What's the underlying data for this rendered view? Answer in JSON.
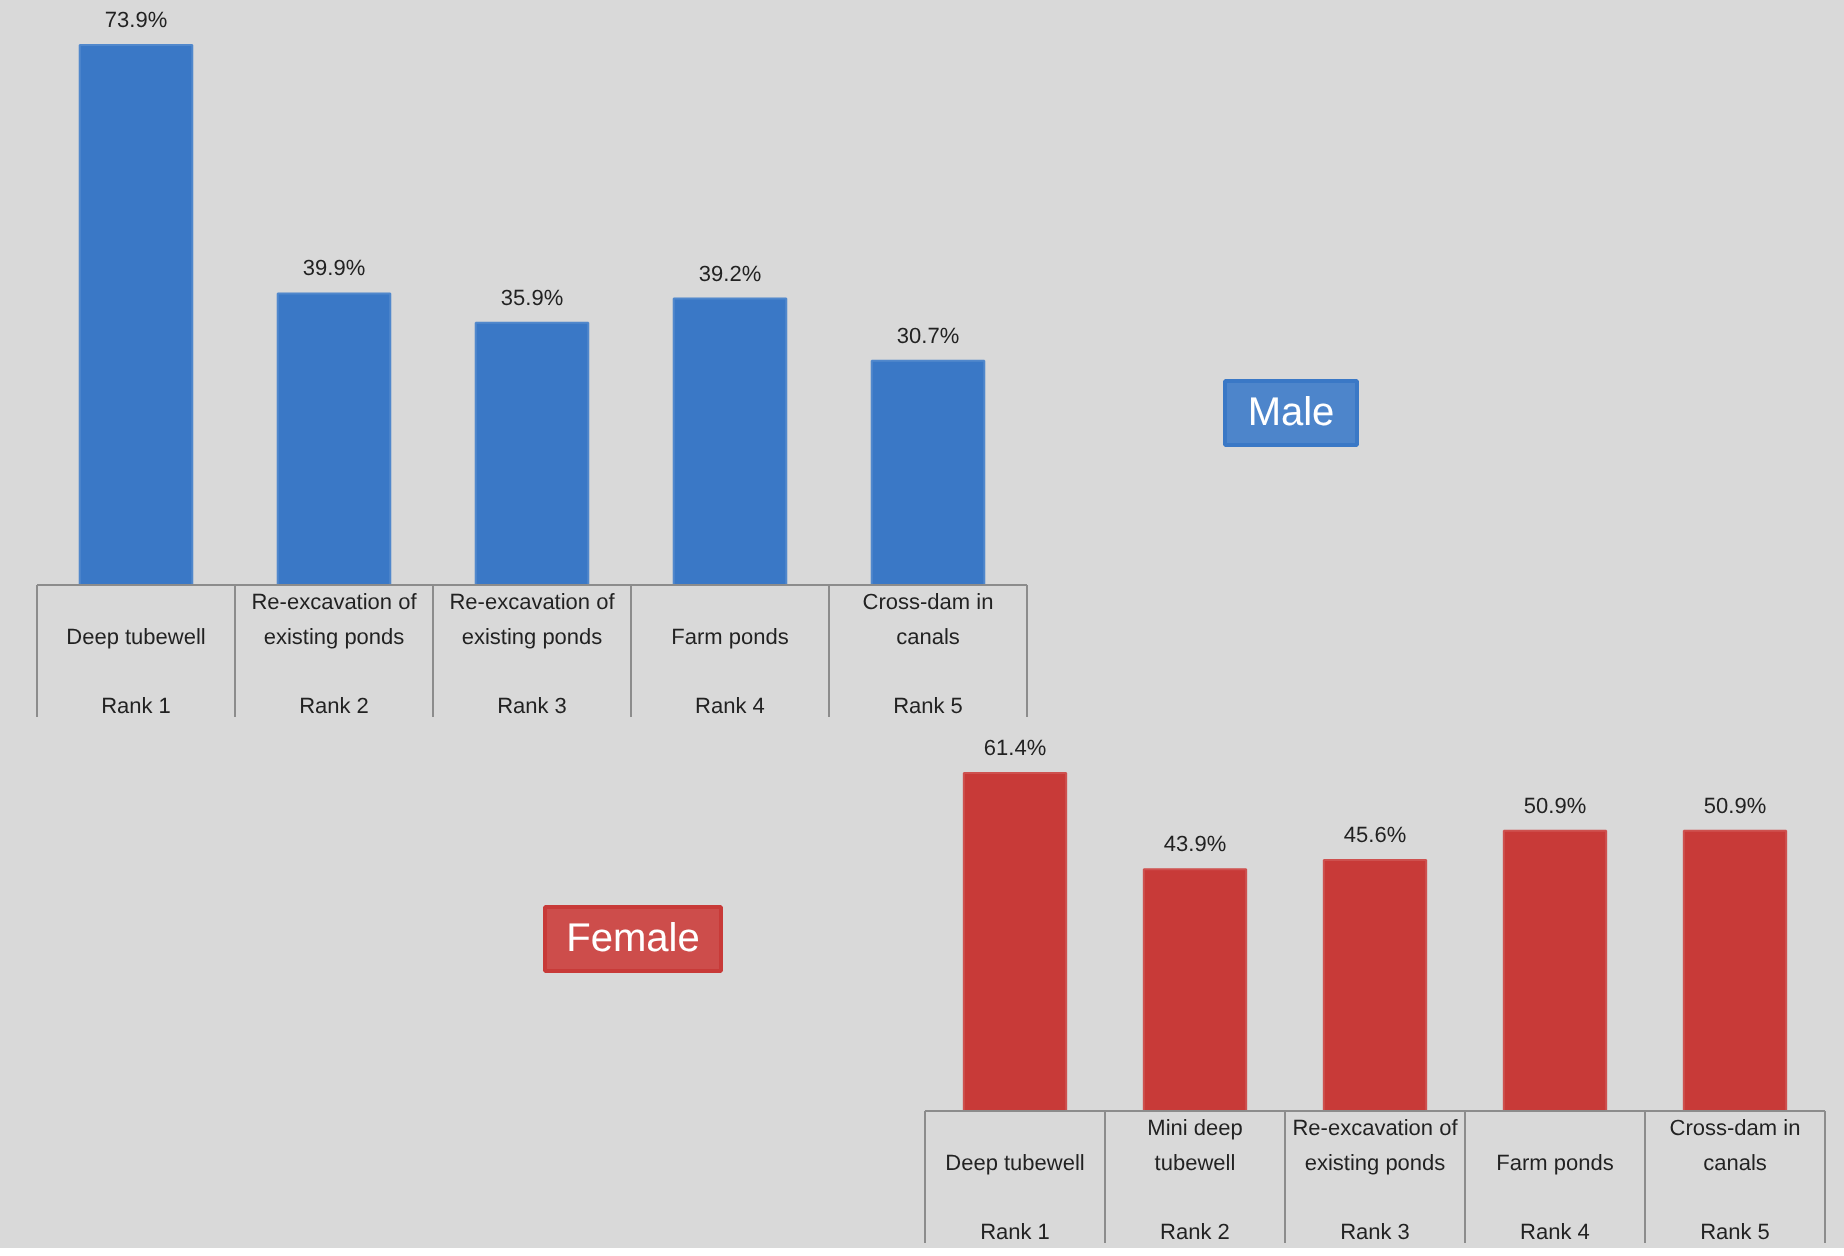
{
  "chart_data": [
    {
      "type": "bar",
      "categories": [
        "Deep tubewell\nRank 1",
        "Re-excavation of existing ponds\nRank 2",
        "Re-excavation of existing ponds\nRank 3",
        "Farm ponds\nRank 4",
        "Cross-dam in canals\nRank 5"
      ],
      "legend": "right",
      "series": [
        {
          "name": "Male",
          "color": "#3a78c6",
          "values": [
            73.9,
            39.9,
            35.9,
            39.2,
            30.7
          ],
          "value_labels": [
            "73.9%",
            "39.9%",
            "35.9%",
            "39.2%",
            "30.7%"
          ]
        }
      ]
    },
    {
      "type": "bar",
      "categories": [
        "Deep tubewell\nRank 1",
        "Mini deep tubewell\nRank 2",
        "Re-excavation of existing ponds\nRank 3",
        "Farm ponds\nRank 4",
        "Cross-dam in canals\nRank 5"
      ],
      "legend": "left",
      "series": [
        {
          "name": "Female",
          "color": "#c83a38",
          "values": [
            61.4,
            43.9,
            45.6,
            50.9,
            50.9
          ],
          "value_labels": [
            "61.4%",
            "43.9%",
            "45.6%",
            "50.9%",
            "50.9%"
          ]
        }
      ]
    }
  ]
}
